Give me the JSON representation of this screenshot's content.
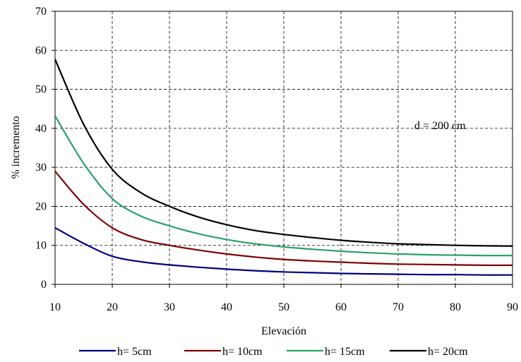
{
  "chart_data": {
    "type": "line",
    "title": "",
    "xlabel": "Elevación",
    "ylabel": "% incremento",
    "annotation": "d = 200 cm",
    "xlim": [
      10,
      90
    ],
    "ylim": [
      0,
      70
    ],
    "x_ticks": [
      10,
      20,
      30,
      40,
      50,
      60,
      70,
      80,
      90
    ],
    "y_ticks": [
      0,
      10,
      20,
      30,
      40,
      50,
      60,
      70
    ],
    "grid": true,
    "legend_position": "bottom",
    "x": [
      10,
      15,
      20,
      25,
      30,
      35,
      40,
      45,
      50,
      55,
      60,
      65,
      70,
      75,
      80,
      85,
      90
    ],
    "series": [
      {
        "name": "h= 5cm",
        "color": "#00007f",
        "values": [
          14.5,
          10.5,
          7.2,
          5.8,
          5.0,
          4.4,
          3.9,
          3.5,
          3.2,
          3.0,
          2.8,
          2.7,
          2.6,
          2.5,
          2.5,
          2.4,
          2.4
        ]
      },
      {
        "name": "h= 10cm",
        "color": "#7f0000",
        "values": [
          29.0,
          20.5,
          14.5,
          11.5,
          10.0,
          8.8,
          7.8,
          7.0,
          6.4,
          6.0,
          5.7,
          5.4,
          5.2,
          5.1,
          5.0,
          4.9,
          4.9
        ]
      },
      {
        "name": "h= 15cm",
        "color": "#2ca06a",
        "values": [
          43.2,
          31.0,
          22.0,
          17.5,
          15.0,
          13.0,
          11.5,
          10.4,
          9.6,
          9.0,
          8.5,
          8.1,
          7.8,
          7.6,
          7.5,
          7.4,
          7.4
        ]
      },
      {
        "name": "h= 20cm",
        "color": "#000000",
        "values": [
          57.7,
          41.0,
          29.5,
          23.5,
          20.0,
          17.3,
          15.3,
          13.8,
          12.8,
          12.0,
          11.3,
          10.8,
          10.4,
          10.2,
          10.0,
          9.9,
          9.8
        ]
      }
    ]
  }
}
